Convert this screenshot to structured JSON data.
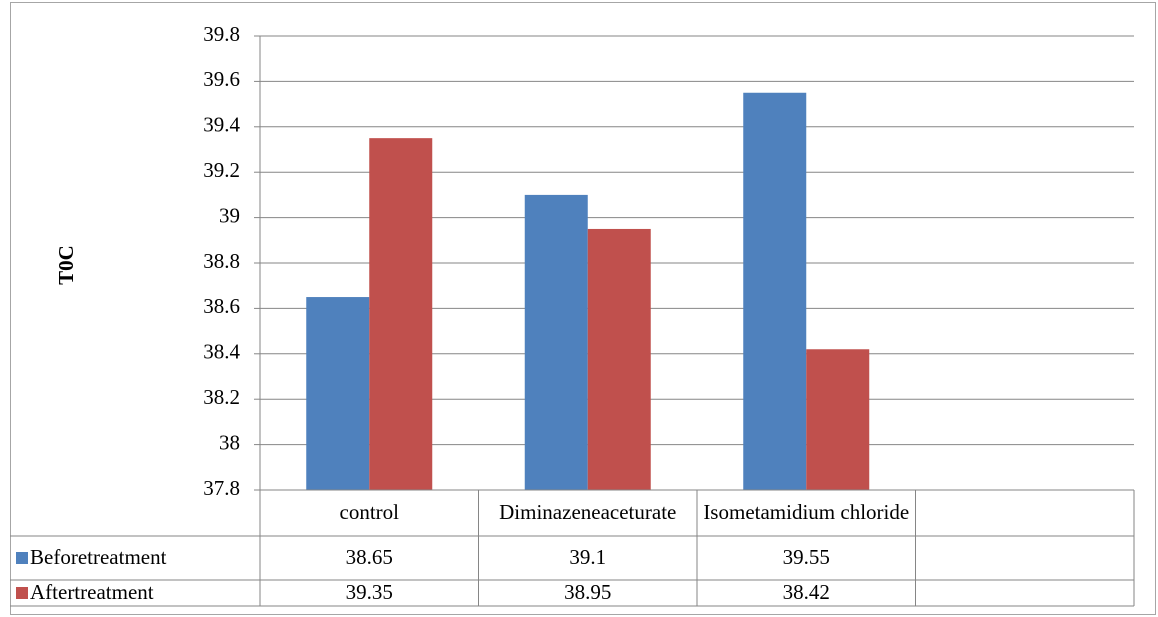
{
  "chart_data": {
    "type": "bar",
    "title": "",
    "xlabel": "",
    "ylabel": "T0C",
    "ylim": [
      37.8,
      39.8
    ],
    "ytick_step": 0.2,
    "yticks": [
      "37.8",
      "38",
      "38.2",
      "38.4",
      "38.6",
      "38.8",
      "39",
      "39.2",
      "39.4",
      "39.6",
      "39.8"
    ],
    "grid": true,
    "categories": [
      "control",
      "Diminazeneaceturate",
      "Isometamidium chloride",
      ""
    ],
    "series": [
      {
        "name": "Beforetreatment",
        "color": "#4f81bd",
        "values": [
          38.65,
          39.1,
          39.55,
          null
        ],
        "labels": [
          "38.65",
          "39.1",
          "39.55",
          ""
        ]
      },
      {
        "name": "Aftertreatment",
        "color": "#c0504d",
        "values": [
          39.35,
          38.95,
          38.42,
          null
        ],
        "labels": [
          "39.35",
          "38.95",
          "38.42",
          ""
        ]
      }
    ],
    "legend": "data-table"
  }
}
